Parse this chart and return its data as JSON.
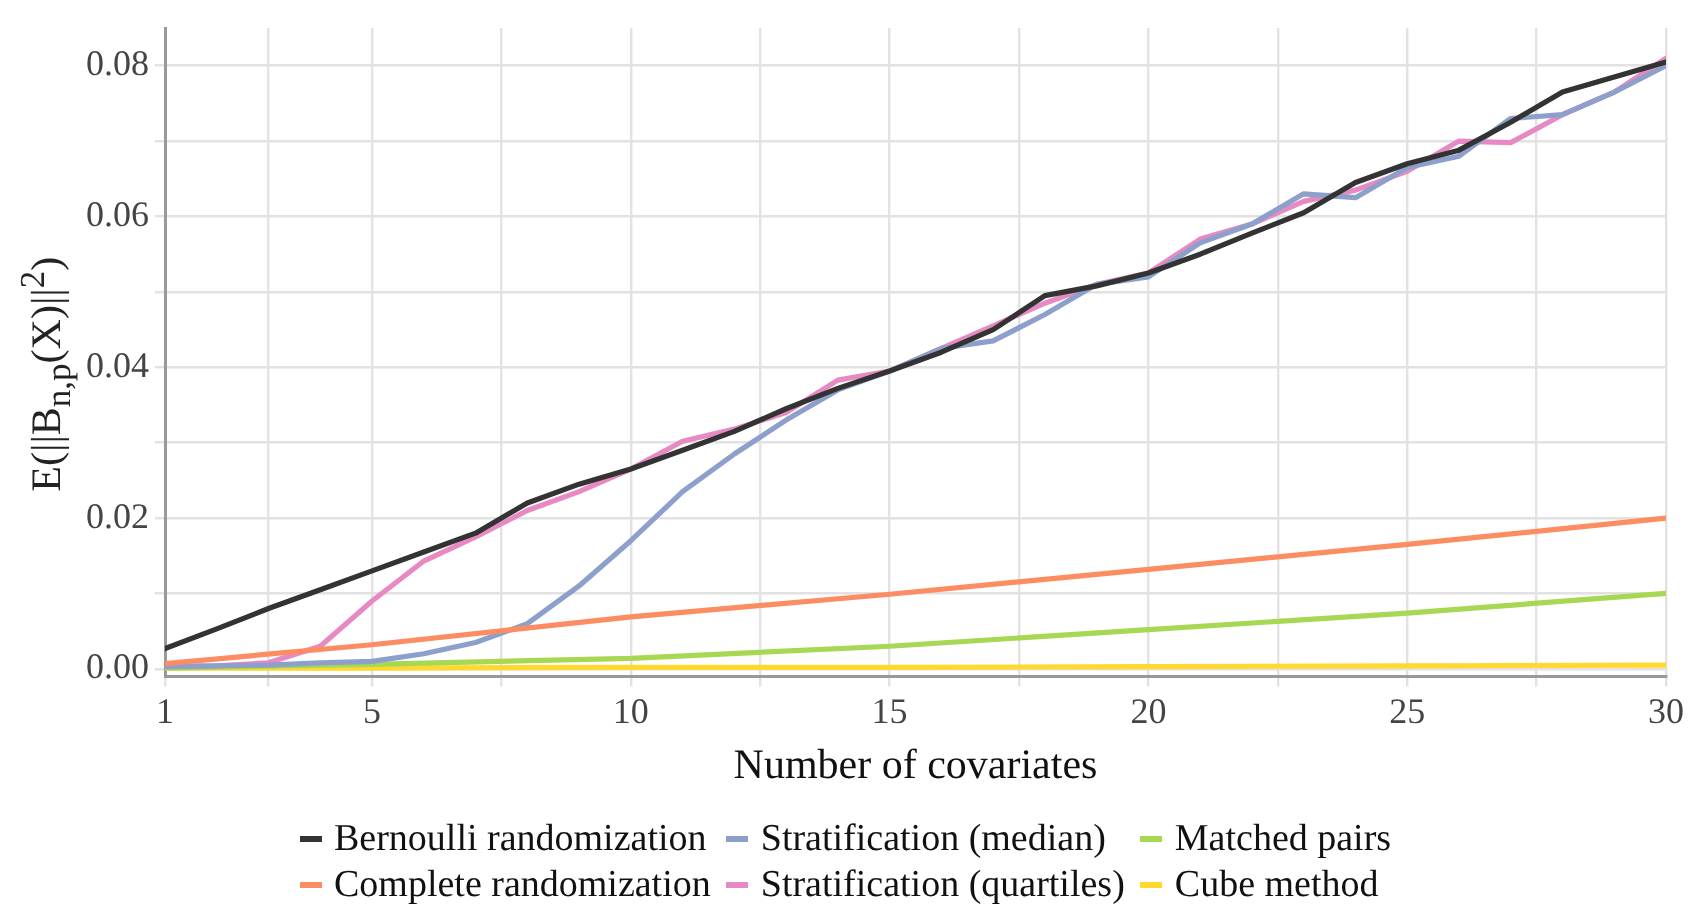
{
  "chart_data": {
    "type": "line",
    "xlabel": "Number of covariates",
    "ylabel": "E(||B$_{n,p}$(X)||$^{2}$)",
    "x": [
      1,
      2,
      3,
      4,
      5,
      6,
      7,
      8,
      9,
      10,
      11,
      12,
      13,
      14,
      15,
      16,
      17,
      18,
      19,
      20,
      21,
      22,
      23,
      24,
      25,
      26,
      27,
      28,
      29,
      30
    ],
    "xlim": [
      1,
      30
    ],
    "xticks": [
      1,
      {
        "value": 3,
        "label": null
      },
      5,
      {
        "value": 7.5,
        "label": null
      },
      10,
      {
        "value": 12.5,
        "label": null
      },
      15,
      {
        "value": 17.5,
        "label": null
      },
      20,
      {
        "value": 22.5,
        "label": null
      },
      25,
      {
        "value": 27.5,
        "label": null
      },
      30
    ],
    "ylim": [
      -0.001,
      0.085
    ],
    "yticks": [
      {
        "value": 0,
        "label": "0.00"
      },
      {
        "value": 0.01,
        "label": null
      },
      {
        "value": 0.02,
        "label": "0.02"
      },
      {
        "value": 0.03,
        "label": null
      },
      {
        "value": 0.04,
        "label": "0.04"
      },
      {
        "value": 0.05,
        "label": null
      },
      {
        "value": 0.06,
        "label": "0.06"
      },
      {
        "value": 0.07,
        "label": null
      },
      {
        "value": 0.08,
        "label": "0.08"
      }
    ],
    "grid": true,
    "legend": "bottom",
    "marker": "none",
    "line_style": "solid",
    "series": [
      {
        "name": "Bernoulli randomization",
        "color": "#333333",
        "values": [
          0.0027,
          0.0053,
          0.008,
          0.0105,
          0.013,
          0.0155,
          0.018,
          0.022,
          0.0245,
          0.0265,
          0.029,
          0.0315,
          0.0345,
          0.0372,
          0.0395,
          0.042,
          0.045,
          0.0495,
          0.0508,
          0.0525,
          0.055,
          0.0578,
          0.0605,
          0.0645,
          0.067,
          0.0688,
          0.0725,
          0.0765,
          0.0785,
          0.0805
        ]
      },
      {
        "name": "Complete randomization",
        "color": "#fc8d62",
        "x": [
          1,
          5,
          10,
          15,
          20,
          25,
          30
        ],
        "values": [
          0.0007,
          0.0032,
          0.0069,
          0.0099,
          0.0132,
          0.0165,
          0.02
        ]
      },
      {
        "name": "Stratification (median)",
        "color": "#8da0cb",
        "values": [
          0.0003,
          0.0004,
          0.0005,
          0.0008,
          0.001,
          0.002,
          0.0035,
          0.006,
          0.011,
          0.017,
          0.0235,
          0.0285,
          0.033,
          0.037,
          0.0395,
          0.0425,
          0.0435,
          0.047,
          0.051,
          0.052,
          0.0565,
          0.059,
          0.063,
          0.0625,
          0.0665,
          0.068,
          0.073,
          0.0735,
          0.0765,
          0.08
        ]
      },
      {
        "name": "Stratification (quartiles)",
        "color": "#e78ac3",
        "values": [
          0.0003,
          0.0004,
          0.0008,
          0.003,
          0.009,
          0.0143,
          0.0175,
          0.021,
          0.0235,
          0.0265,
          0.0302,
          0.0318,
          0.034,
          0.0383,
          0.0395,
          0.0425,
          0.0455,
          0.0485,
          0.051,
          0.0525,
          0.057,
          0.059,
          0.062,
          0.0635,
          0.066,
          0.07,
          0.0698,
          0.0735,
          0.0765,
          0.081
        ]
      },
      {
        "name": "Matched pairs",
        "color": "#a6d854",
        "x": [
          1,
          5,
          10,
          15,
          20,
          25,
          30
        ],
        "values": [
          0.0001,
          0.0006,
          0.0014,
          0.003,
          0.0052,
          0.0074,
          0.01
        ]
      },
      {
        "name": "Cube method",
        "color": "#ffd92f",
        "x": [
          1,
          5,
          10,
          15,
          20,
          25,
          30
        ],
        "values": [
          0.0001,
          0.0001,
          0.0002,
          0.0002,
          0.0003,
          0.0004,
          0.0005
        ]
      }
    ]
  }
}
